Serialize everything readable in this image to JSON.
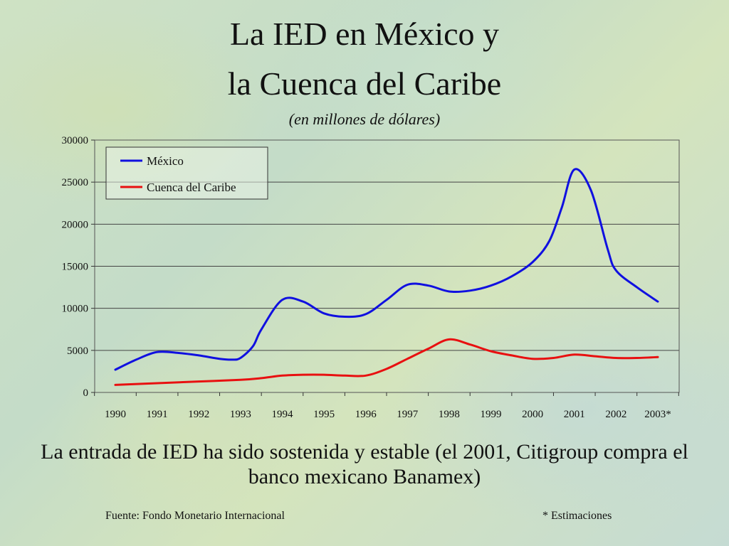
{
  "slide": {
    "title_line1": "La IED en México y",
    "title_line2": "la Cuenca del Caribe",
    "subtitle": "(en millones de dólares)",
    "caption": "La entrada de IED ha sido sostenida y estable (el 2001, Citigroup compra el banco mexicano Banamex)",
    "source": "Fuente: Fondo Monetario Internacional",
    "note": "* Estimaciones"
  },
  "chart_data": {
    "type": "line",
    "categories": [
      "1990",
      "1991",
      "1992",
      "1993",
      "1994",
      "1995",
      "1996",
      "1997",
      "1998",
      "1999",
      "2000",
      "2001",
      "2002",
      "2003*"
    ],
    "ylim": [
      0,
      30000
    ],
    "yticks": [
      0,
      5000,
      10000,
      15000,
      20000,
      25000,
      30000
    ],
    "grid": true,
    "legend_position": "top-left",
    "series": [
      {
        "name": "México",
        "color": "#1010e0",
        "x": [
          0,
          0.5,
          1,
          1.5,
          2,
          2.5,
          2.8,
          3,
          3.3,
          3.5,
          4,
          4.5,
          5,
          5.5,
          6,
          6.5,
          7,
          7.5,
          8,
          8.5,
          9,
          9.5,
          10,
          10.4,
          10.7,
          11,
          11.4,
          11.8,
          12,
          12.5,
          13
        ],
        "values": [
          2700,
          3900,
          4800,
          4700,
          4400,
          4000,
          3900,
          4100,
          5500,
          7500,
          11000,
          10800,
          9400,
          9000,
          9300,
          11000,
          12800,
          12700,
          12000,
          12100,
          12700,
          13800,
          15500,
          18000,
          22000,
          26500,
          24000,
          17000,
          14500,
          12500,
          10800
        ]
      },
      {
        "name": "Cuenca del Caribe",
        "color": "#e81010",
        "x": [
          0,
          1,
          2,
          3,
          3.5,
          4,
          4.5,
          5,
          5.5,
          6,
          6.5,
          7,
          7.5,
          8,
          8.5,
          9,
          9.5,
          10,
          10.5,
          11,
          11.5,
          12,
          12.5,
          13
        ],
        "values": [
          900,
          1100,
          1300,
          1500,
          1700,
          2000,
          2100,
          2100,
          2000,
          2000,
          2800,
          4000,
          5200,
          6300,
          5700,
          4900,
          4400,
          4000,
          4100,
          4500,
          4300,
          4100,
          4100,
          4200
        ]
      }
    ]
  }
}
